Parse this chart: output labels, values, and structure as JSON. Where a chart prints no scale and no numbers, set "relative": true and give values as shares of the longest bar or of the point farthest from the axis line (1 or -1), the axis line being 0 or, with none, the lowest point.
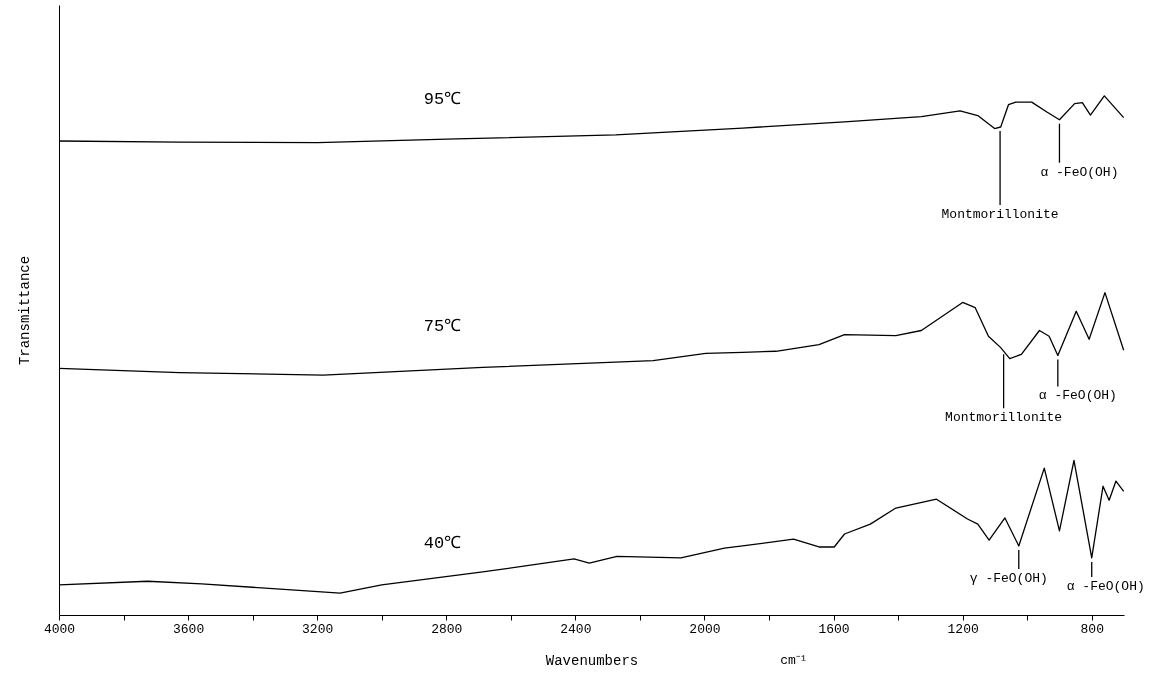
{
  "chart_data": {
    "type": "line",
    "relative": true,
    "xlabel": "Wavenumbers",
    "ylabel": "Transmittance",
    "xlim": [
      4000,
      700
    ],
    "xticks": [
      4000,
      {
        "value": 3800,
        "label": null
      },
      3600,
      {
        "value": 3400,
        "label": null
      },
      3200,
      {
        "value": 3000,
        "label": null
      },
      2800,
      {
        "value": 2600,
        "label": null
      },
      2400,
      {
        "value": 2200,
        "label": null
      },
      2000,
      {
        "value": 1800,
        "label": null
      },
      1600,
      {
        "value": 1400,
        "label": null
      },
      1200,
      {
        "value": 1000,
        "label": null
      },
      800
    ],
    "grid": false,
    "marker": "none",
    "line_style": "solid",
    "series": [
      {
        "name": "95℃",
        "color": "#000000",
        "x": [
          4000,
          3627,
          3198,
          2769,
          2275,
          1882,
          1566,
          1328,
          1208,
          1153,
          1101,
          1082,
          1058,
          1035,
          986,
          939,
          900,
          853,
          829,
          804,
          761,
          701
        ],
        "values": [
          0.913,
          0.911,
          0.91,
          0.917,
          0.925,
          0.938,
          0.95,
          0.96,
          0.971,
          0.962,
          0.937,
          0.94,
          0.983,
          0.988,
          0.988,
          0.969,
          0.954,
          0.985,
          0.987,
          0.963,
          1.0,
          0.958
        ]
      },
      {
        "name": "75℃",
        "color": "#000000",
        "x": [
          4000,
          3627,
          3181,
          2687,
          2159,
          1996,
          1882,
          1779,
          1645,
          1566,
          1407,
          1328,
          1200,
          1161,
          1120,
          1082,
          1054,
          1018,
          962,
          932,
          905,
          848,
          808,
          759,
          701
        ],
        "values": [
          0.475,
          0.467,
          0.462,
          0.477,
          0.49,
          0.504,
          0.506,
          0.508,
          0.521,
          0.54,
          0.538,
          0.548,
          0.602,
          0.592,
          0.537,
          0.515,
          0.494,
          0.502,
          0.548,
          0.537,
          0.5,
          0.585,
          0.531,
          0.621,
          0.51
        ]
      },
      {
        "name": "40℃",
        "color": "#000000",
        "x": [
          4000,
          3725,
          3558,
          3129,
          3000,
          2687,
          2404,
          2357,
          2271,
          2073,
          1938,
          1882,
          1724,
          1645,
          1598,
          1566,
          1486,
          1407,
          1281,
          1185,
          1153,
          1118,
          1069,
          1026,
          947,
          900,
          855,
          800,
          765,
          746,
          725,
          701
        ],
        "values": [
          0.058,
          0.065,
          0.06,
          0.042,
          0.058,
          0.083,
          0.108,
          0.1,
          0.113,
          0.11,
          0.129,
          0.133,
          0.146,
          0.131,
          0.131,
          0.156,
          0.175,
          0.206,
          0.223,
          0.185,
          0.175,
          0.144,
          0.187,
          0.133,
          0.283,
          0.162,
          0.298,
          0.11,
          0.248,
          0.221,
          0.258,
          0.238
        ]
      }
    ],
    "annotations": [
      {
        "text": "Montmorillonite",
        "x": 1084,
        "y": 0.94
      },
      {
        "text": "α -FeO(OH)",
        "x": 900,
        "y": 0.954
      },
      {
        "text": "Montmorillonite",
        "x": 1073,
        "y": 0.51
      },
      {
        "text": "α -FeO(OH)",
        "x": 905,
        "y": 0.5
      },
      {
        "text": "γ -FeO(OH)",
        "x": 1026,
        "y": 0.133
      },
      {
        "text": "α -FeO(OH)",
        "x": 800,
        "y": 0.11
      },
      "cm⁻¹"
    ]
  }
}
